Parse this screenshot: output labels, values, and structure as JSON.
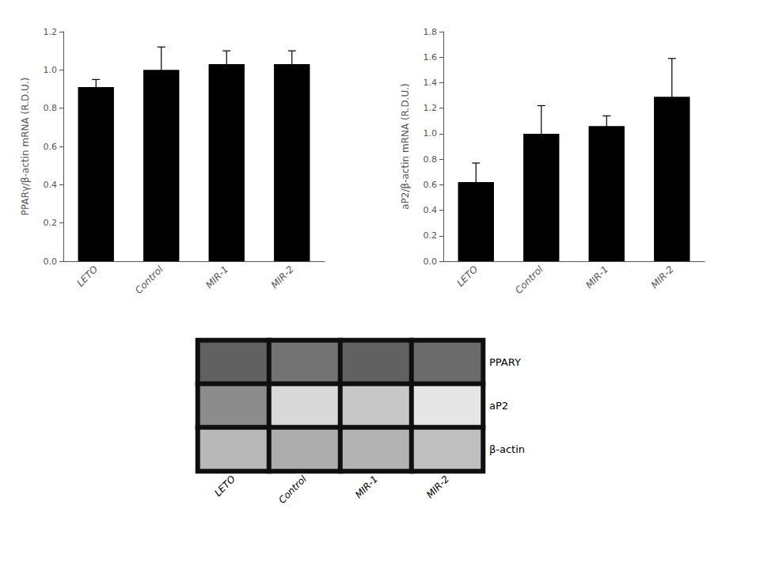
{
  "chart_data": [
    {
      "type": "bar",
      "ylabel": "PPARγ/β-actin mRNA (R.D.U.)",
      "categories": [
        "LETO",
        "Control",
        "MIR-1",
        "MIR-2"
      ],
      "values": [
        0.91,
        1.0,
        1.03,
        1.03
      ],
      "errors": [
        0.04,
        0.12,
        0.07,
        0.07
      ],
      "color": "#000000",
      "ylim": [
        0,
        1.2
      ],
      "yticks": [
        {
          "value": 0.0,
          "label": "0.0"
        },
        {
          "value": 0.2,
          "label": "0.2"
        },
        {
          "value": 0.4,
          "label": "0.4"
        },
        {
          "value": 0.6,
          "label": "0.6"
        },
        {
          "value": 0.8,
          "label": "0.8"
        },
        {
          "value": 1.0,
          "label": "1.0"
        },
        {
          "value": 1.2,
          "label": "1.2"
        }
      ],
      "grid": false
    },
    {
      "type": "bar",
      "ylabel": "aP2/β-actin mRNA (R.D.U.)",
      "categories": [
        "LETO",
        "Control",
        "MIR-1",
        "MIR-2"
      ],
      "values": [
        0.62,
        1.0,
        1.06,
        1.29
      ],
      "errors": [
        0.15,
        0.22,
        0.08,
        0.3
      ],
      "color": "#000000",
      "ylim": [
        0,
        1.8
      ],
      "yticks": [
        {
          "value": 0.0,
          "label": "0.0"
        },
        {
          "value": 0.2,
          "label": "0.2"
        },
        {
          "value": 0.4,
          "label": "0.4"
        },
        {
          "value": 0.6,
          "label": "0.6"
        },
        {
          "value": 0.8,
          "label": "0.8"
        },
        {
          "value": 1.0,
          "label": "1.0"
        },
        {
          "value": 1.2,
          "label": "1.2"
        },
        {
          "value": 1.4,
          "label": "1.4"
        },
        {
          "value": 1.6,
          "label": "1.6"
        },
        {
          "value": 1.8,
          "label": "1.8"
        }
      ],
      "grid": false
    },
    {
      "type": "heatmap",
      "categories": [
        "LETO",
        "Control",
        "MIR-1",
        "MIR-2"
      ],
      "rows": [
        "PPARY",
        "aP2",
        "β-actin"
      ],
      "cells": [
        [
          0.38,
          0.45,
          0.38,
          0.42
        ],
        [
          0.55,
          0.85,
          0.78,
          0.9
        ],
        [
          0.72,
          0.68,
          0.7,
          0.75
        ]
      ]
    }
  ]
}
